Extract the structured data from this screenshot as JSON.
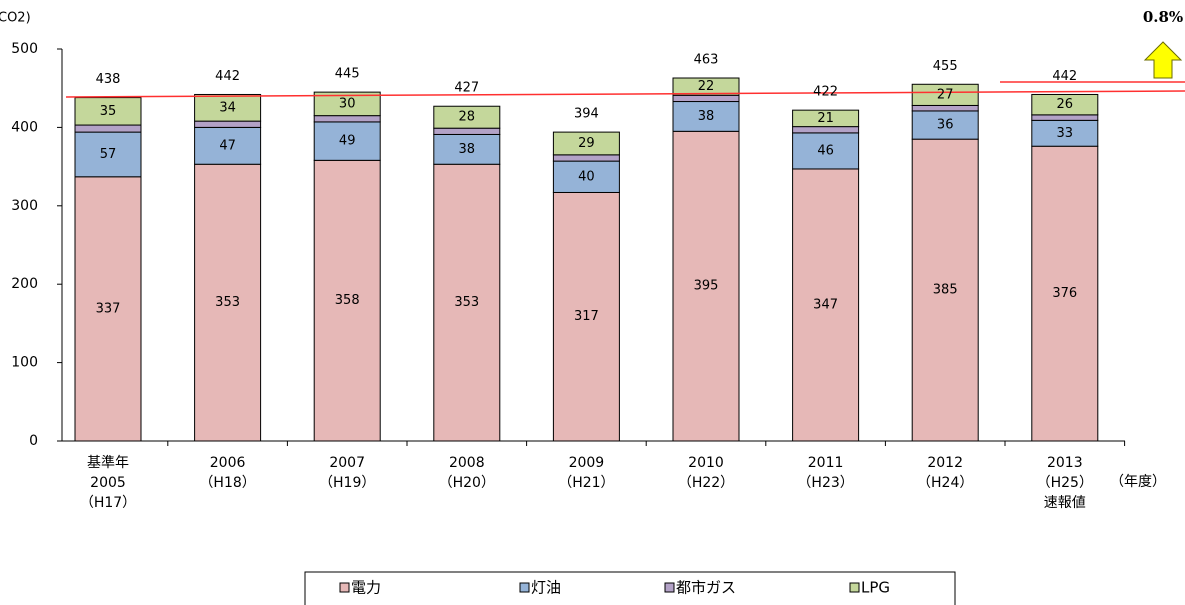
{
  "chart_data": {
    "type": "stacked-bar",
    "ylabel": "CO2)",
    "xlabel": "（年度）",
    "annotation": "0.8%",
    "categories": [
      "基準年\n2005\n（H17）",
      "2006\n（H18）",
      "2007\n（H19）",
      "2008\n（H20）",
      "2009\n（H21）",
      "2010\n（H22）",
      "2011\n（H23）",
      "2012\n（H24）",
      "2013\n（H25）\n速報値"
    ],
    "series": [
      {
        "name": "電力",
        "color": "#e6b8b7",
        "values": [
          337,
          353,
          358,
          353,
          317,
          395,
          347,
          385,
          376
        ],
        "labels": true
      },
      {
        "name": "灯油",
        "color": "#95b3d7",
        "values": [
          57,
          47,
          49,
          38,
          40,
          38,
          46,
          36,
          33
        ],
        "labels": true
      },
      {
        "name": "都市ガス",
        "color": "#b3a2c7",
        "values": [
          9,
          8,
          8,
          8,
          8,
          8,
          8,
          7,
          7
        ],
        "labels": false
      },
      {
        "name": "LPG",
        "color": "#c4d79b",
        "values": [
          35,
          34,
          30,
          28,
          29,
          22,
          21,
          27,
          26
        ],
        "labels": true
      }
    ],
    "totals": [
      438,
      442,
      445,
      427,
      394,
      463,
      422,
      455,
      442
    ],
    "ylim": [
      0,
      500
    ],
    "yticks": [
      0,
      100,
      200,
      300,
      400,
      500
    ]
  }
}
